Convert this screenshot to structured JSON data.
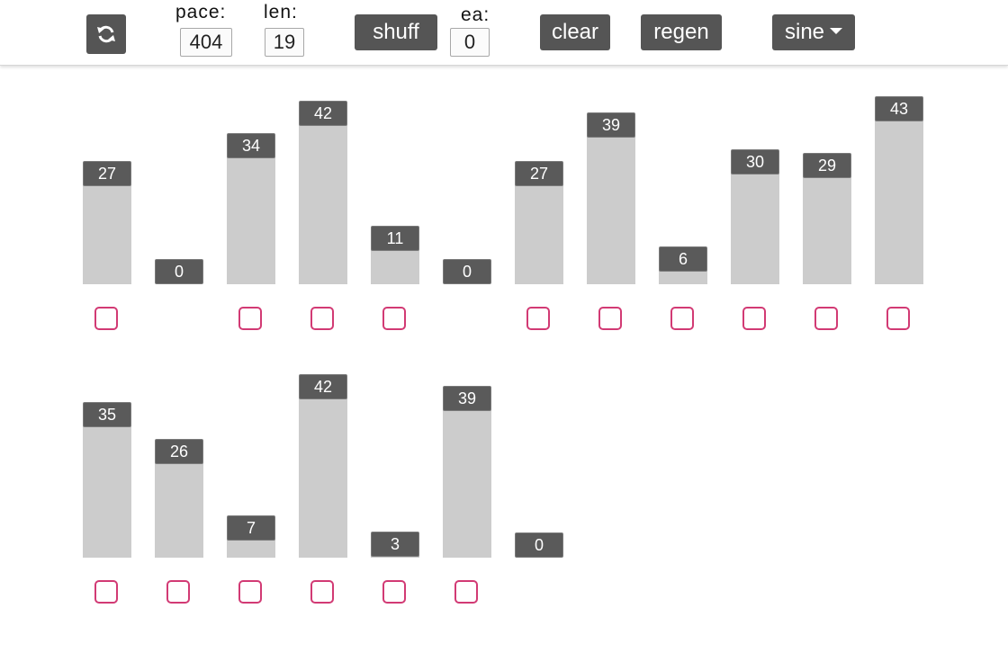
{
  "toolbar": {
    "refresh_icon": "refresh-icon",
    "pace_label": "pace:",
    "pace_value": "404",
    "len_label": "len:",
    "len_value": "19",
    "shuff_label": "shuff",
    "ea_label": "ea:",
    "ea_value": "0",
    "clear_label": "clear",
    "regen_label": "regen",
    "mode_label": "sine"
  },
  "colors": {
    "button_bg": "#555555",
    "bar_fill": "#cccccc",
    "badge_bg": "#5a5a5a",
    "checkbox_border": "#d23a74"
  },
  "items": [
    {
      "value": 27,
      "checkbox": true
    },
    {
      "value": 0,
      "checkbox": false
    },
    {
      "value": 34,
      "checkbox": true
    },
    {
      "value": 42,
      "checkbox": true
    },
    {
      "value": 11,
      "checkbox": true
    },
    {
      "value": 0,
      "checkbox": false
    },
    {
      "value": 27,
      "checkbox": true
    },
    {
      "value": 39,
      "checkbox": true
    },
    {
      "value": 6,
      "checkbox": true
    },
    {
      "value": 30,
      "checkbox": true
    },
    {
      "value": 29,
      "checkbox": true
    },
    {
      "value": 43,
      "checkbox": true
    },
    {
      "value": 35,
      "checkbox": true
    },
    {
      "value": 26,
      "checkbox": true
    },
    {
      "value": 7,
      "checkbox": true
    },
    {
      "value": 42,
      "checkbox": true
    },
    {
      "value": 3,
      "checkbox": true
    },
    {
      "value": 39,
      "checkbox": true
    },
    {
      "value": 0,
      "checkbox": false
    }
  ]
}
